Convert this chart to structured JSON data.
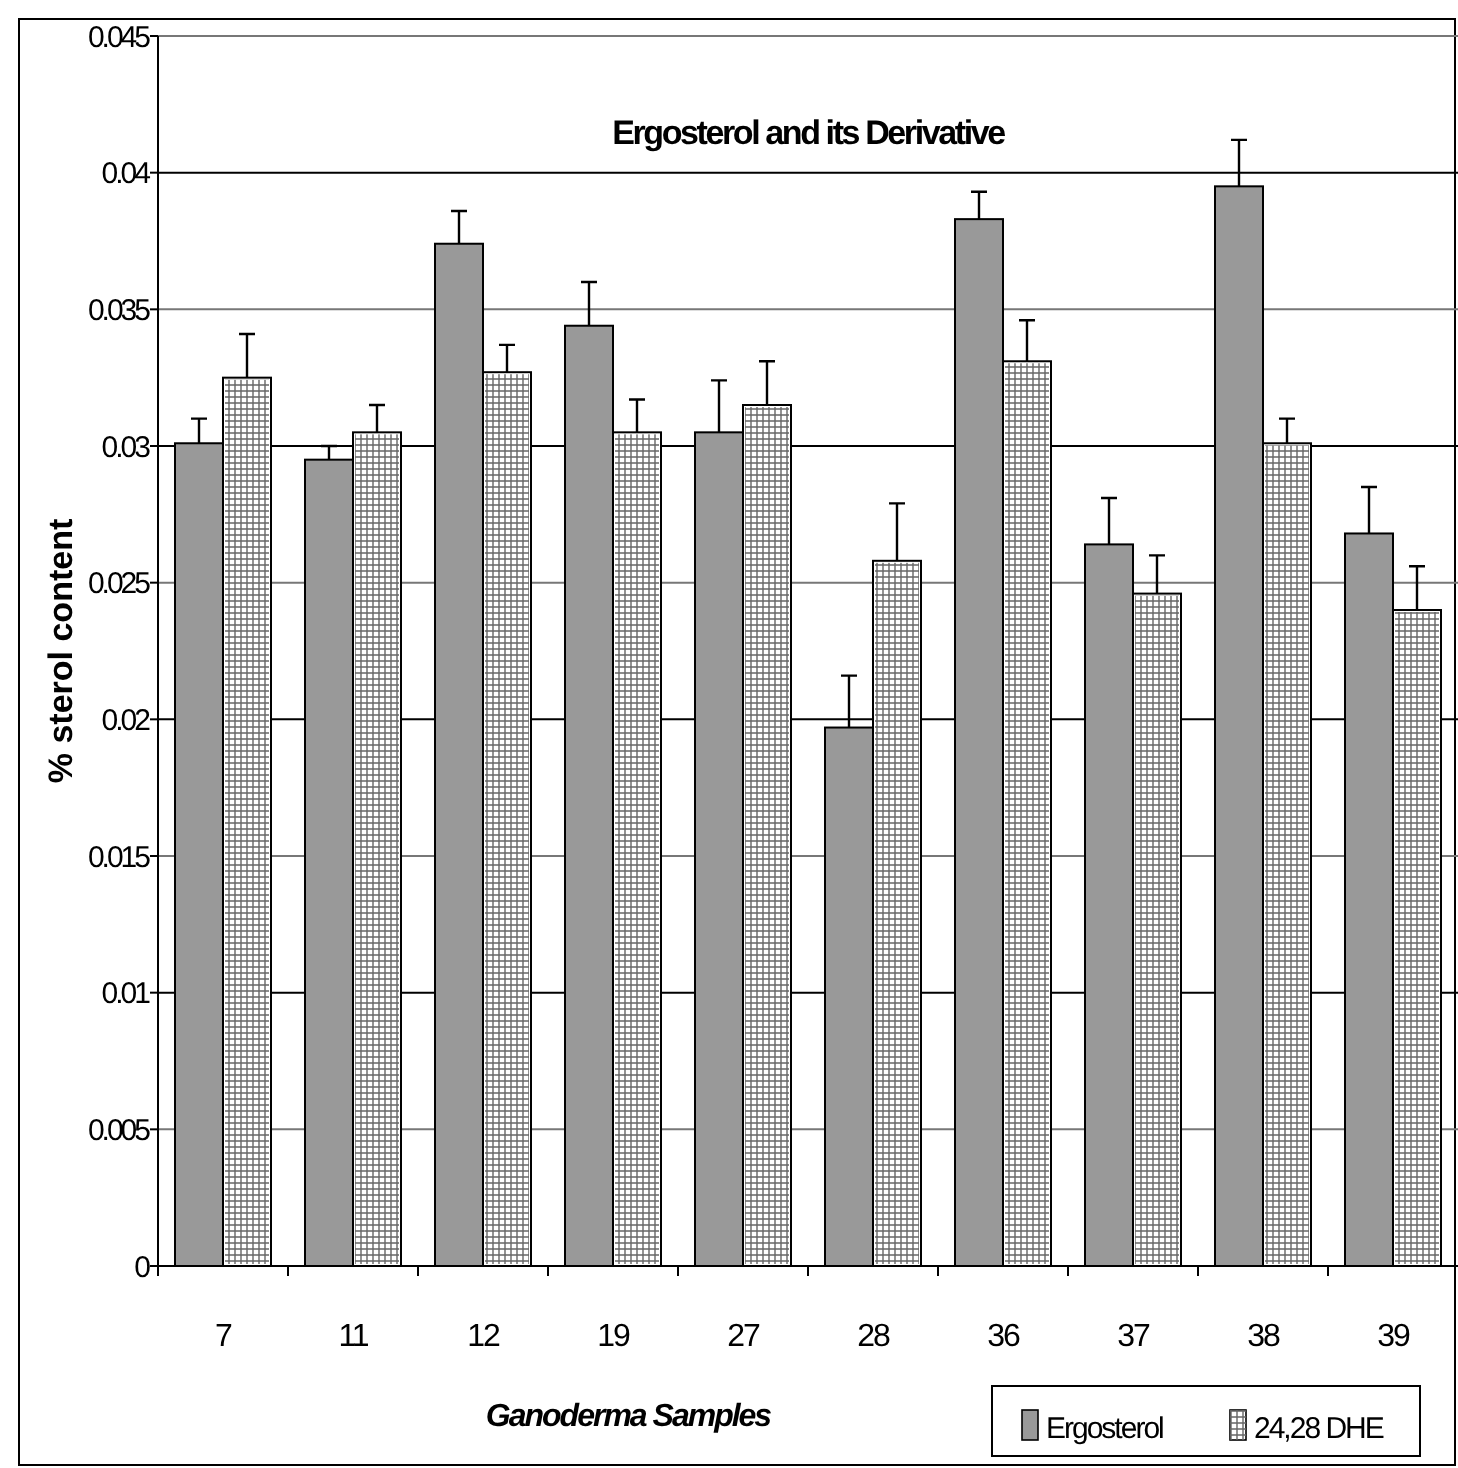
{
  "chart_data": {
    "type": "bar",
    "title": "Ergosterol and its Derivative",
    "xlabel": "Ganoderma Samples",
    "ylabel": "% sterol content",
    "categories": [
      "7",
      "11",
      "12",
      "19",
      "27",
      "28",
      "36",
      "37",
      "38",
      "39"
    ],
    "series": [
      {
        "name": "Ergosterol",
        "color": "#999999",
        "values": [
          0.0301,
          0.0295,
          0.0374,
          0.0344,
          0.0305,
          0.0197,
          0.0383,
          0.0264,
          0.0395,
          0.0268
        ],
        "errors": [
          [
            0.0301,
            0.031
          ],
          [
            0.0295,
            0.03
          ],
          [
            0.0374,
            0.0386
          ],
          [
            0.0344,
            0.036
          ],
          [
            0.0305,
            0.0324
          ],
          [
            0.0197,
            0.0216
          ],
          [
            0.0383,
            0.0393
          ],
          [
            0.0264,
            0.0281
          ],
          [
            0.0395,
            0.0412
          ],
          [
            0.0268,
            0.0285
          ]
        ]
      },
      {
        "name": "24,28 DHE",
        "color": "#ffffff",
        "values": [
          0.0325,
          0.0305,
          0.0327,
          0.0305,
          0.0315,
          0.0258,
          0.0331,
          0.0246,
          0.0301,
          0.024
        ],
        "errors": [
          [
            0.0325,
            0.0341
          ],
          [
            0.0305,
            0.0315
          ],
          [
            0.0327,
            0.0337
          ],
          [
            0.0305,
            0.0317
          ],
          [
            0.0315,
            0.0331
          ],
          [
            0.0258,
            0.0279
          ],
          [
            0.0331,
            0.0346
          ],
          [
            0.0246,
            0.026
          ],
          [
            0.0301,
            0.031
          ],
          [
            0.024,
            0.0256
          ]
        ]
      }
    ],
    "ylim": [
      0,
      0.045
    ],
    "yticks": [
      0,
      0.005,
      0.01,
      0.015,
      0.02,
      0.025,
      0.03,
      0.035,
      0.04,
      0.045
    ],
    "grid": "y",
    "legend": "bottom right"
  }
}
